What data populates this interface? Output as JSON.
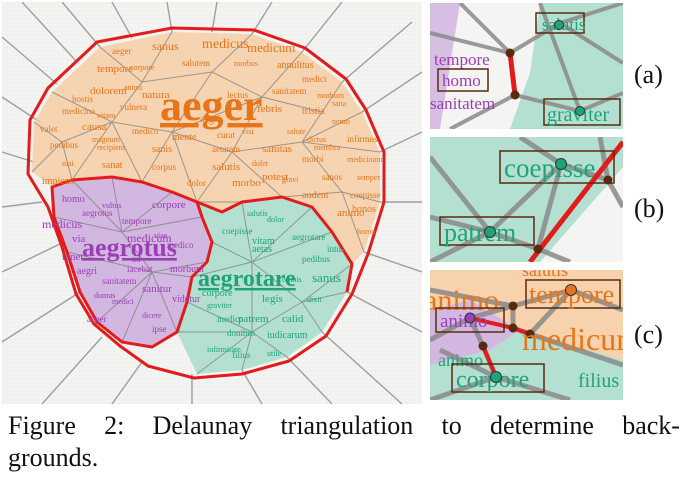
{
  "colors": {
    "orange": "#e8751a",
    "purple": "#9b3fb5",
    "green": "#1fa37a",
    "red": "#e21b1b",
    "edge": "#6e6e6e"
  },
  "main_words": {
    "orange": [
      "aeger",
      "sanus",
      "medicus",
      "medicum",
      "tempore",
      "corpore",
      "salutem",
      "morbus",
      "annulitus",
      "medici",
      "dolorem",
      "animi",
      "sanitatem",
      "morbum",
      "tristia",
      "medicina",
      "causa",
      "nemo",
      "pedibus",
      "recipiens",
      "sanis",
      "aetatem",
      "sanitas",
      "dictus",
      "infirmus",
      "nisi",
      "sanat",
      "corpus",
      "salutis",
      "dolet",
      "morbi",
      "medicinam",
      "impiens",
      "dolor",
      "morbo",
      "gravi",
      "sanos",
      "semper",
      "audent",
      "coepisse",
      "animo",
      "homo",
      "medico",
      "visi",
      "aegri",
      "hostis",
      "febris",
      "sana",
      "vulnera",
      "salute",
      "mente",
      "curat",
      "potest",
      "magnum",
      "valet",
      "membra",
      "honos",
      "lectus",
      "natura",
      "vitam"
    ],
    "purple": [
      "aegrotus",
      "medicus",
      "homo",
      "tempore",
      "corpore",
      "medicum",
      "medico",
      "viae",
      "aegri",
      "sanitatem",
      "sanitur",
      "medici",
      "aeger",
      "dicere",
      "videtur",
      "iacebat",
      "tenet",
      "vultus",
      "ipse",
      "domus",
      "morbum",
      "ad",
      "via"
    ],
    "green": [
      "aegrotare",
      "graviter",
      "corpore",
      "coepisse",
      "patrem",
      "salutis",
      "donibus",
      "infirmitate",
      "iudicarum",
      "medico",
      "legis",
      "dolor",
      "pedibus",
      "omnis",
      "aetas",
      "sanus",
      "calid",
      "dixit",
      "filius",
      "utile",
      "vitam",
      "intus"
    ]
  },
  "headwords": {
    "orange": "aeger",
    "purple": "aegrotus",
    "green": "aegrotare"
  },
  "panel_a": {
    "label": "(a)",
    "words": [
      "salutis",
      "tempore",
      "homo",
      "sanitatem",
      "graviter"
    ]
  },
  "panel_b": {
    "label": "(b)",
    "words": [
      "coepisse",
      "patrem"
    ]
  },
  "panel_c": {
    "label": "(c)",
    "words": [
      "salutis",
      "animo",
      "tempore",
      "animo",
      "medicum",
      "animo",
      "corpore",
      "filius"
    ]
  },
  "caption": {
    "line1_words": [
      "Figure",
      "2:",
      "Delaunay",
      "triangulation",
      "to",
      "determine",
      "back-"
    ],
    "line2": "grounds."
  }
}
